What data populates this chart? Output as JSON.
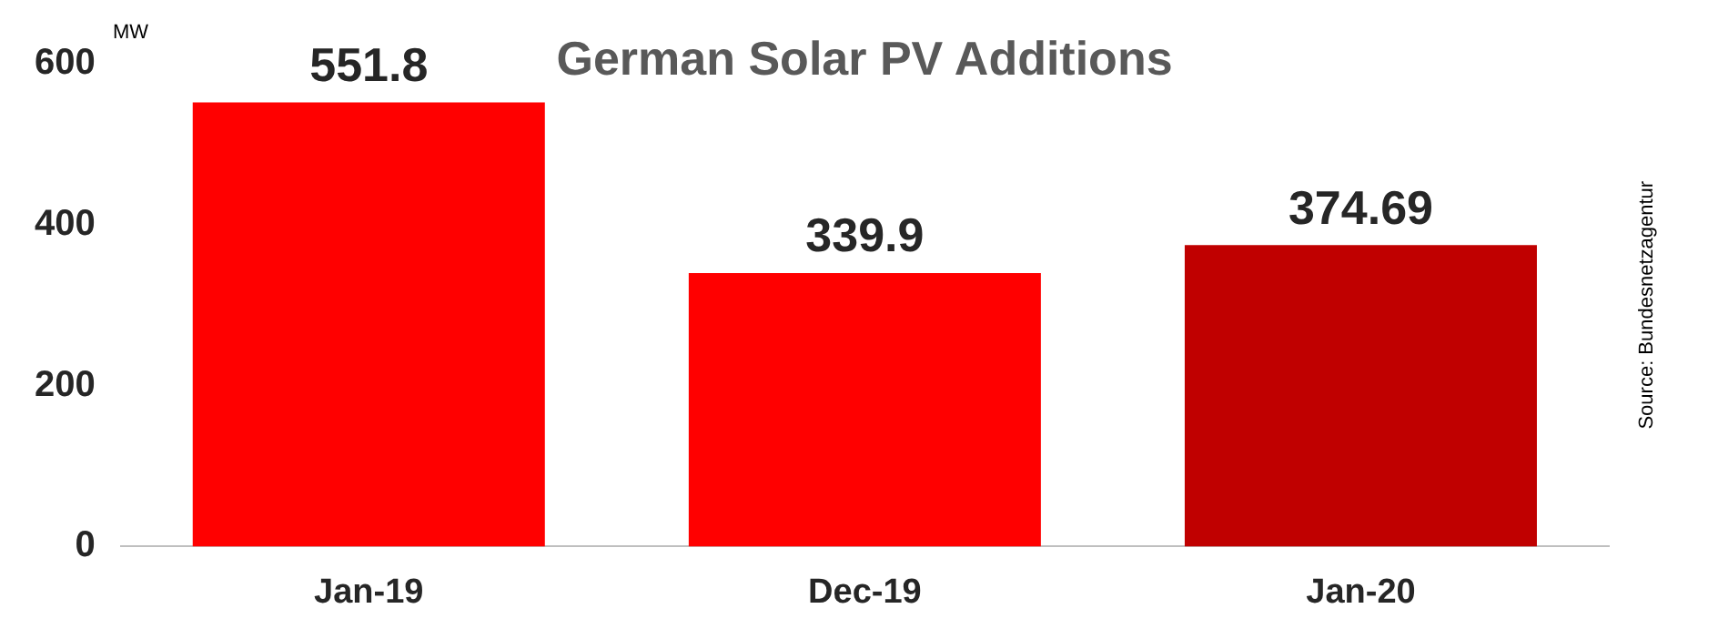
{
  "chart_data": {
    "type": "bar",
    "title": "German Solar PV Additions",
    "ylabel": "MW",
    "categories": [
      "Jan-19",
      "Dec-19",
      "Jan-20"
    ],
    "values": [
      551.8,
      339.9,
      374.69
    ],
    "colors": [
      "#ff0000",
      "#ff0000",
      "#c00000"
    ],
    "ylim": [
      0,
      600
    ],
    "yticks": [
      0,
      200,
      400,
      600
    ],
    "grid": false,
    "legend": false,
    "data_labels": true,
    "annotations": [
      "Source: Bundesnetzagentur"
    ]
  }
}
